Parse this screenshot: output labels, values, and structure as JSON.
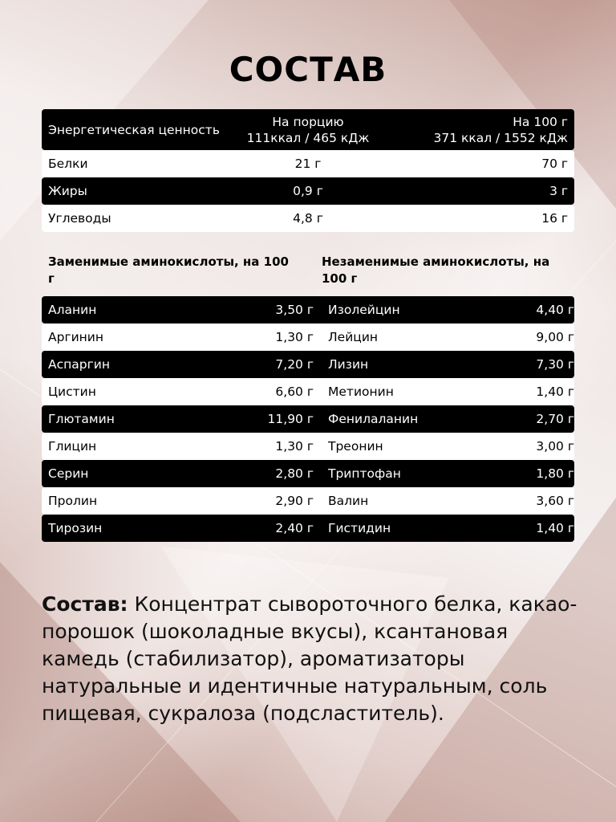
{
  "title": "СОСТАВ",
  "nutrition": {
    "header": {
      "label": "Энергетическая ценность",
      "per_serving_title": "На порцию",
      "per_serving_value": "111ккал / 465 кДж",
      "per_100_title": "На 100 г",
      "per_100_value": "371 ккал / 1552 кДж"
    },
    "rows": [
      {
        "name": "Белки",
        "serving": "21 г",
        "per100": "70 г"
      },
      {
        "name": "Жиры",
        "serving": "0,9 г",
        "per100": "3 г"
      },
      {
        "name": "Углеводы",
        "serving": "4,8 г",
        "per100": "16 г"
      }
    ]
  },
  "amino": {
    "nonessential_title": "Заменимые аминокислоты, на 100 г",
    "essential_title": "Незаменимые аминокислоты, на 100 г",
    "rows": [
      {
        "a": "Аланин",
        "av": "3,50 г",
        "b": "Изолейцин",
        "bv": "4,40 г"
      },
      {
        "a": "Аргинин",
        "av": "1,30 г",
        "b": "Лейцин",
        "bv": "9,00 г"
      },
      {
        "a": "Аспаргин",
        "av": "7,20 г",
        "b": "Лизин",
        "bv": "7,30 г"
      },
      {
        "a": "Цистин",
        "av": "6,60 г",
        "b": "Метионин",
        "bv": "1,40 г"
      },
      {
        "a": "Глютамин",
        "av": "11,90 г",
        "b": "Фенилаланин",
        "bv": "2,70 г"
      },
      {
        "a": "Глицин",
        "av": "1,30 г",
        "b": "Треонин",
        "bv": "3,00 г"
      },
      {
        "a": "Серин",
        "av": "2,80 г",
        "b": "Триптофан",
        "bv": "1,80 г"
      },
      {
        "a": "Пролин",
        "av": "2,90 г",
        "b": "Валин",
        "bv": "3,60 г"
      },
      {
        "a": "Тирозин",
        "av": "2,40 г",
        "b": "Гистидин",
        "bv": "1,40 г"
      }
    ]
  },
  "composition": {
    "label": "Состав:",
    "text": " Концентрат сывороточного белка, какао-порошок (шоколадные вкусы), ксантановая камедь (стабилизатор), ароматизаторы натуральные и идентичные натуральным, соль пищевая, сукралоза (подсластитель)."
  }
}
